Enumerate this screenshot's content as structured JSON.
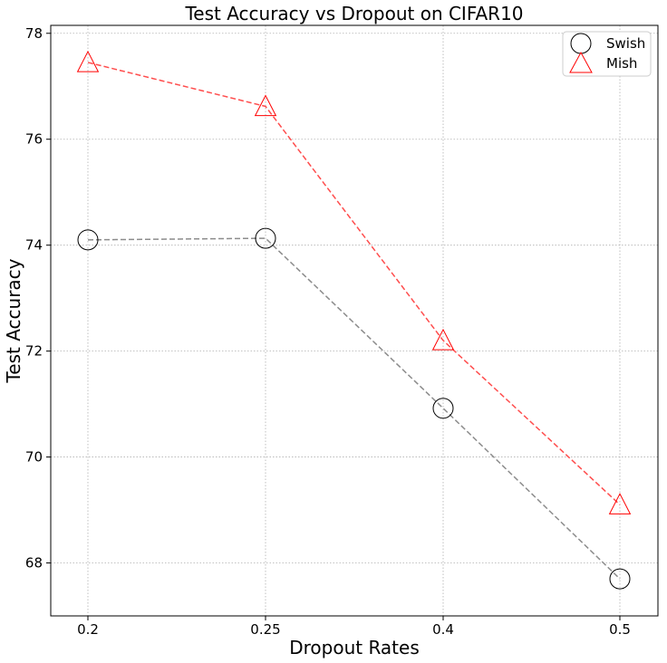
{
  "chart_data": {
    "type": "line",
    "title": "Test Accuracy vs Dropout on CIFAR10",
    "xlabel": "Dropout Rates",
    "ylabel": "Test Accuracy",
    "categories": [
      "0.2",
      "0.25",
      "0.4",
      "0.5"
    ],
    "ylim": [
      67,
      78.15
    ],
    "yticks": [
      68,
      70,
      72,
      74,
      76,
      78
    ],
    "grid": true,
    "legend_position": "top-right",
    "series": [
      {
        "name": "Swish",
        "marker": "circle",
        "line_color": "#8c8c8c",
        "marker_color": "#000000",
        "values": [
          74.1,
          74.13,
          70.92,
          67.7
        ]
      },
      {
        "name": "Mish",
        "marker": "triangle",
        "line_color": "#ff4d4d",
        "marker_color": "#ff0000",
        "values": [
          77.45,
          76.62,
          72.2,
          69.1
        ]
      }
    ]
  }
}
